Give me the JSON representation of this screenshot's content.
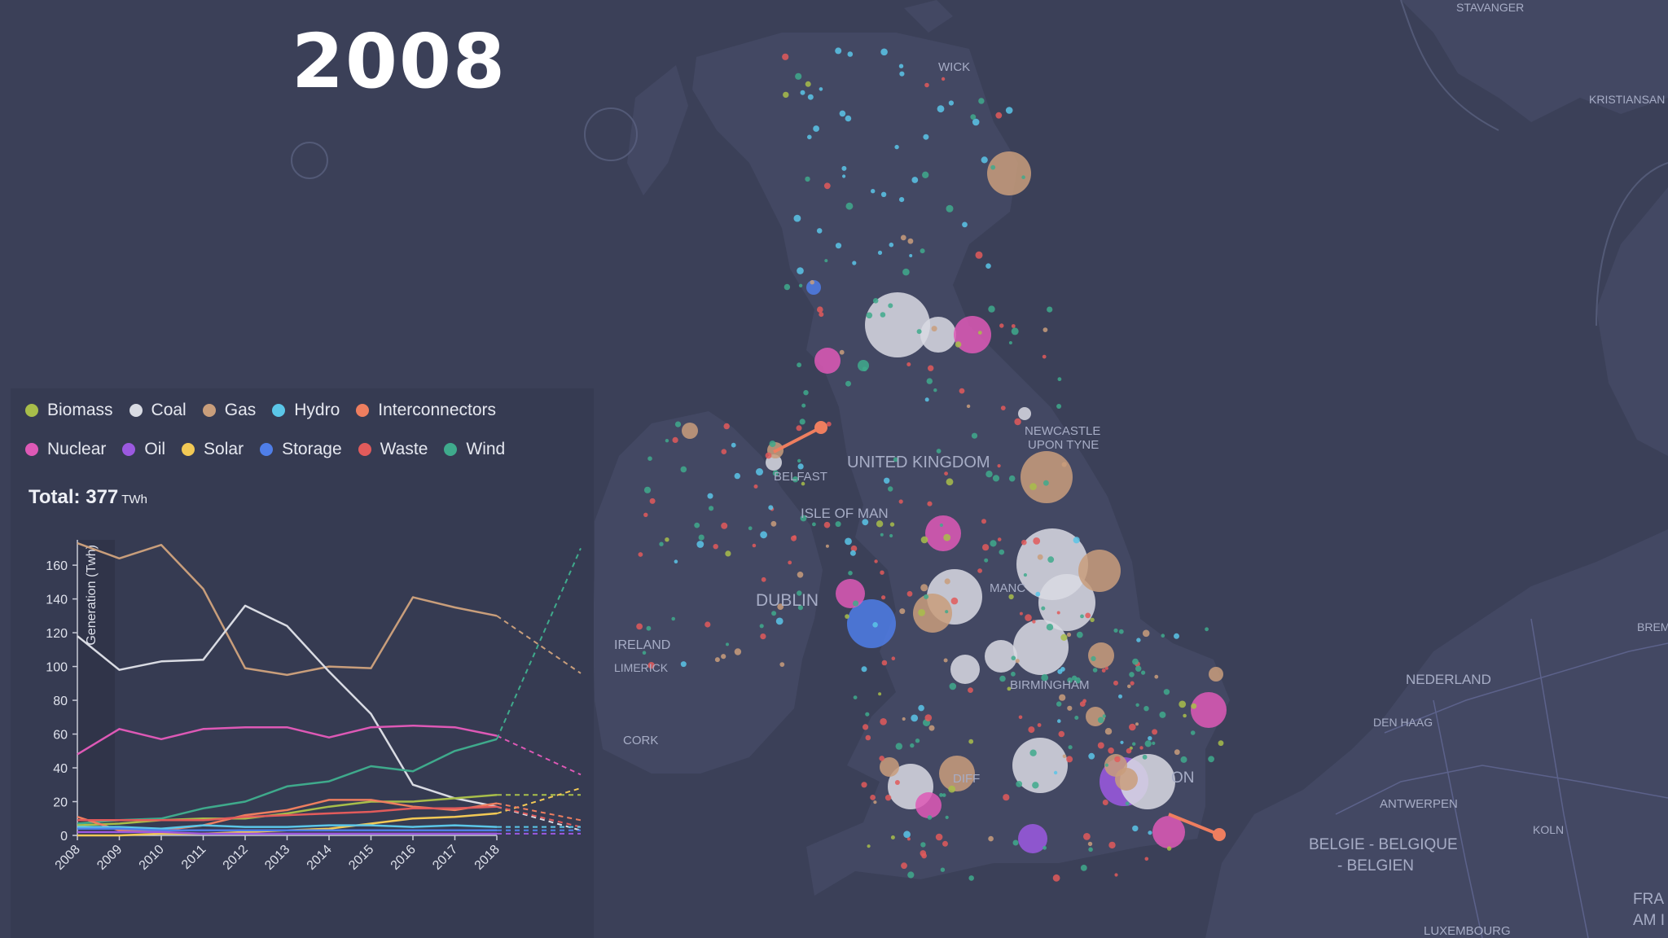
{
  "year": "2008",
  "legend": [
    {
      "name": "Biomass",
      "color": "#a8be4a"
    },
    {
      "name": "Coal",
      "color": "#d9dbe3"
    },
    {
      "name": "Gas",
      "color": "#c99e7b"
    },
    {
      "name": "Hydro",
      "color": "#5bc6e8"
    },
    {
      "name": "Interconnectors",
      "color": "#ee7e5f"
    },
    {
      "name": "Nuclear",
      "color": "#de59b6"
    },
    {
      "name": "Oil",
      "color": "#9b59e0"
    },
    {
      "name": "Solar",
      "color": "#f2c955"
    },
    {
      "name": "Storage",
      "color": "#4f7ee8"
    },
    {
      "name": "Waste",
      "color": "#e25b5b"
    },
    {
      "name": "Wind",
      "color": "#3faa8c"
    }
  ],
  "total": {
    "label": "Total:",
    "value": "377",
    "unit": "TWh"
  },
  "chart_data": {
    "type": "line",
    "ylabel": "Generation (Twh)",
    "x": [
      "2008",
      "2009",
      "2010",
      "2011",
      "2012",
      "2013",
      "2014",
      "2015",
      "2016",
      "2017",
      "2018"
    ],
    "ylim": [
      0,
      175
    ],
    "yticks": [
      0,
      20,
      40,
      60,
      80,
      100,
      120,
      140,
      160
    ],
    "projection_end": 2020,
    "series": [
      {
        "name": "Gas",
        "color": "#c99e7b",
        "values": [
          173,
          164,
          172,
          146,
          99,
          95,
          100,
          99,
          141,
          135,
          130
        ],
        "projection": 96
      },
      {
        "name": "Coal",
        "color": "#d9dbe3",
        "values": [
          118,
          98,
          103,
          104,
          136,
          124,
          97,
          72,
          30,
          22,
          17
        ],
        "projection": 3
      },
      {
        "name": "Nuclear",
        "color": "#de59b6",
        "values": [
          48,
          63,
          57,
          63,
          64,
          64,
          58,
          64,
          65,
          64,
          59
        ],
        "projection": 36
      },
      {
        "name": "Wind",
        "color": "#3faa8c",
        "values": [
          7,
          9,
          10,
          16,
          20,
          29,
          32,
          41,
          38,
          50,
          57
        ],
        "projection": 170
      },
      {
        "name": "Biomass",
        "color": "#a8be4a",
        "values": [
          6,
          7,
          9,
          10,
          10,
          13,
          17,
          20,
          20,
          22,
          24
        ],
        "projection": 24
      },
      {
        "name": "Solar",
        "color": "#f2c955",
        "values": [
          0,
          0,
          1,
          1,
          2,
          3,
          4,
          7,
          10,
          11,
          13
        ],
        "projection": 28
      },
      {
        "name": "Interconnectors",
        "color": "#ee7e5f",
        "values": [
          11,
          3,
          3,
          6,
          12,
          15,
          21,
          21,
          17,
          15,
          19
        ],
        "projection": 9
      },
      {
        "name": "Waste",
        "color": "#e25b5b",
        "values": [
          9,
          9,
          9,
          9,
          11,
          12,
          13,
          14,
          16,
          16,
          17
        ],
        "projection": 5
      },
      {
        "name": "Hydro",
        "color": "#5bc6e8",
        "values": [
          5,
          5,
          4,
          6,
          5,
          5,
          6,
          6,
          5,
          6,
          5
        ],
        "projection": 5
      },
      {
        "name": "Storage",
        "color": "#4f7ee8",
        "values": [
          4,
          4,
          3,
          3,
          3,
          3,
          3,
          3,
          3,
          3,
          3
        ],
        "projection": 3
      },
      {
        "name": "Oil",
        "color": "#9b59e0",
        "values": [
          2,
          2,
          2,
          1,
          1,
          1,
          1,
          1,
          1,
          1,
          1
        ],
        "projection": 1
      }
    ]
  },
  "map": {
    "labels": [
      {
        "text": "WICK"
      },
      {
        "text": "UNITED KINGDOM"
      },
      {
        "text": "NEWCASTLE"
      },
      {
        "text": "UPON TYNE"
      },
      {
        "text": "BELFAST"
      },
      {
        "text": "ISLE OF MAN"
      },
      {
        "text": "DUBLIN"
      },
      {
        "text": "IRELAND"
      },
      {
        "text": "LIMERICK"
      },
      {
        "text": "CORK"
      },
      {
        "text": "MANC"
      },
      {
        "text": "BIRMINGHAM"
      },
      {
        "text": "DIFF"
      },
      {
        "text": "ON"
      },
      {
        "text": "NEDERLAND"
      },
      {
        "text": "DEN HAAG"
      },
      {
        "text": "ANTWERPEN"
      },
      {
        "text": "BELGIE - BELGIQUE"
      },
      {
        "text": "- BELGIEN"
      },
      {
        "text": "KOLN"
      },
      {
        "text": "LUXEMBOURG"
      },
      {
        "text": "STAVANGER"
      },
      {
        "text": "KRISTIANSAN"
      },
      {
        "text": "BREM"
      },
      {
        "text": "FRA"
      },
      {
        "text": "AM I"
      }
    ]
  }
}
